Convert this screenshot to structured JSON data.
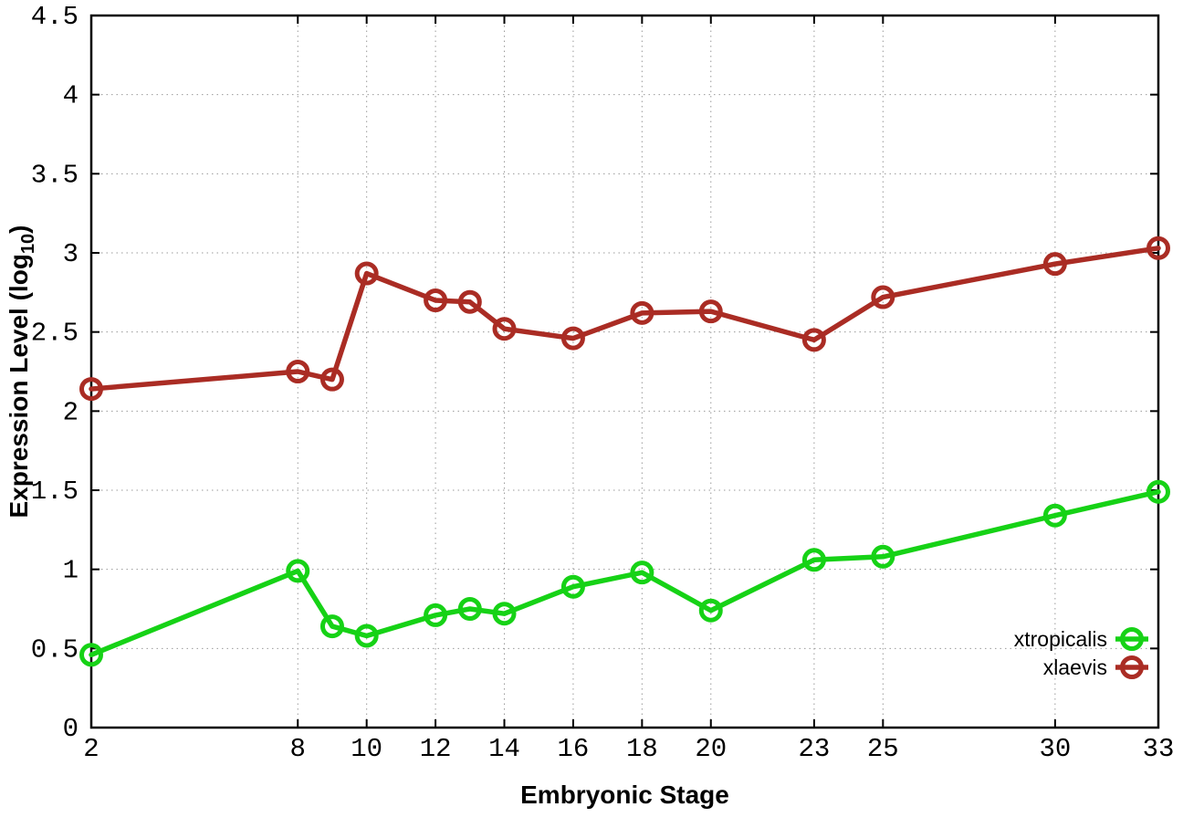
{
  "chart_data": {
    "type": "line",
    "title": "",
    "xlabel": "Embryonic Stage",
    "ylabel": "Expression Level (log10)",
    "ylabel_prefix": "Expression Level (log",
    "ylabel_sub": "10",
    "ylabel_suffix": ")",
    "xlim": [
      2,
      33
    ],
    "ylim": [
      0,
      4.5
    ],
    "x_ticks": [
      2,
      8,
      10,
      12,
      14,
      16,
      18,
      20,
      23,
      25,
      30,
      33
    ],
    "y_ticks": [
      0,
      0.5,
      1,
      1.5,
      2,
      2.5,
      3,
      3.5,
      4,
      4.5
    ],
    "grid": true,
    "legend_position": "bottom-right",
    "x": [
      2,
      8,
      9,
      10,
      12,
      13,
      14,
      16,
      18,
      20,
      23,
      25,
      30,
      33
    ],
    "series": [
      {
        "name": "xtropicalis",
        "color": "#16d216",
        "values": [
          0.46,
          0.99,
          0.64,
          0.58,
          0.71,
          0.75,
          0.72,
          0.89,
          0.98,
          0.74,
          1.06,
          1.08,
          1.34,
          1.49
        ]
      },
      {
        "name": "xlaevis",
        "color": "#aa2c24",
        "values": [
          2.14,
          2.25,
          2.2,
          2.87,
          2.7,
          2.69,
          2.52,
          2.46,
          2.62,
          2.63,
          2.45,
          2.72,
          2.93,
          3.03
        ]
      }
    ]
  },
  "colors": {
    "background": "#ffffff",
    "axis": "#000000",
    "grid": "#9a9a9a",
    "xtropicalis": "#16d216",
    "xlaevis": "#aa2c24"
  }
}
